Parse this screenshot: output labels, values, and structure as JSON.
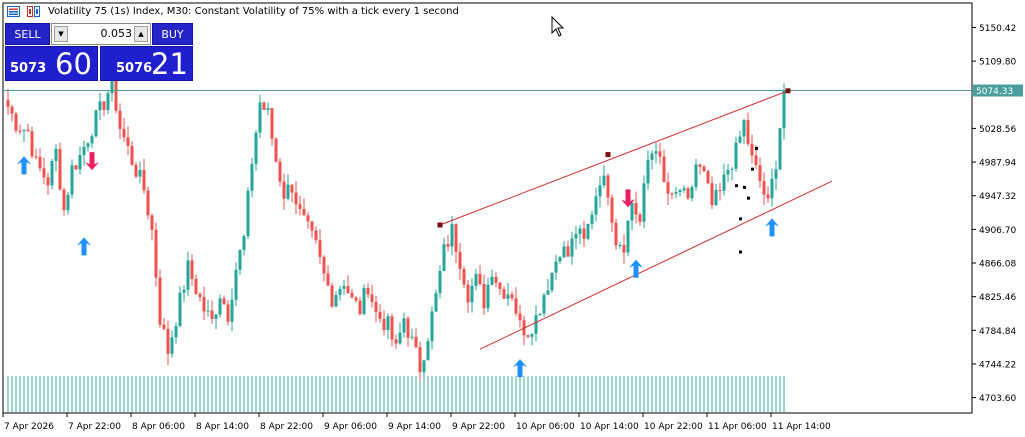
{
  "header": {
    "title": "Volatility 75 (1s) Index, M30:  Constant Volatility of 75% with a tick every 1 second"
  },
  "trade_panel": {
    "sell_label": "SELL",
    "buy_label": "BUY",
    "lot": "0.053",
    "lot_down": "▼",
    "lot_up": "▲",
    "sell_price_small": "5073",
    "sell_price_big": "60",
    "buy_price_small": "5076",
    "buy_price_big": "21"
  },
  "colors": {
    "bull": "#26a69a",
    "bear": "#ef5350",
    "channel": "#d32f2f",
    "buy_arrow": "#1e90ff",
    "sell_arrow": "#e91e63",
    "price_line": "#4a9e9e",
    "volume": "#3aa8a8"
  },
  "chart_data": {
    "type": "candlestick",
    "symbol": "Volatility 75 (1s) Index",
    "timeframe": "M30",
    "y_ticks": [
      "5150.42",
      "5109.80",
      "5028.56",
      "4987.94",
      "4947.32",
      "4906.70",
      "4866.08",
      "4825.46",
      "4784.84",
      "4744.22",
      "4703.60"
    ],
    "ylim": [
      4685,
      5180
    ],
    "x_ticks": [
      "7 Apr 2026",
      "7 Apr 22:00",
      "8 Apr 06:00",
      "8 Apr 14:00",
      "8 Apr 22:00",
      "9 Apr 06:00",
      "9 Apr 14:00",
      "9 Apr 22:00",
      "10 Apr 06:00",
      "10 Apr 14:00",
      "10 Apr 22:00",
      "11 Apr 06:00",
      "11 Apr 14:00"
    ],
    "current_price": "5074.33",
    "close_path": [
      [
        0,
        5055
      ],
      [
        2,
        5035
      ],
      [
        5,
        5025
      ],
      [
        7,
        4985
      ],
      [
        10,
        4965
      ],
      [
        12,
        5000
      ],
      [
        14,
        4930
      ],
      [
        16,
        4980
      ],
      [
        18,
        4995
      ],
      [
        21,
        5030
      ],
      [
        24,
        5060
      ],
      [
        26,
        5085
      ],
      [
        28,
        5030
      ],
      [
        31,
        4990
      ],
      [
        34,
        4955
      ],
      [
        36,
        4905
      ],
      [
        38,
        4800
      ],
      [
        40,
        4760
      ],
      [
        42,
        4800
      ],
      [
        45,
        4860
      ],
      [
        47,
        4835
      ],
      [
        49,
        4810
      ],
      [
        51,
        4795
      ],
      [
        53,
        4830
      ],
      [
        55,
        4805
      ],
      [
        57,
        4860
      ],
      [
        59,
        4895
      ],
      [
        61,
        4990
      ],
      [
        63,
        5060
      ],
      [
        65,
        5045
      ],
      [
        67,
        4990
      ],
      [
        69,
        4950
      ],
      [
        71,
        4960
      ],
      [
        73,
        4925
      ],
      [
        75,
        4905
      ],
      [
        77,
        4885
      ],
      [
        79,
        4850
      ],
      [
        81,
        4825
      ],
      [
        84,
        4845
      ],
      [
        86,
        4820
      ],
      [
        88,
        4810
      ],
      [
        90,
        4840
      ],
      [
        92,
        4805
      ],
      [
        95,
        4790
      ],
      [
        97,
        4760
      ],
      [
        99,
        4800
      ],
      [
        101,
        4770
      ],
      [
        103,
        4740
      ],
      [
        105,
        4780
      ],
      [
        107,
        4825
      ],
      [
        109,
        4880
      ],
      [
        111,
        4905
      ],
      [
        113,
        4870
      ],
      [
        115,
        4830
      ],
      [
        117,
        4845
      ],
      [
        119,
        4820
      ],
      [
        121,
        4860
      ],
      [
        123,
        4835
      ],
      [
        126,
        4830
      ],
      [
        128,
        4790
      ],
      [
        130,
        4785
      ],
      [
        132,
        4800
      ],
      [
        134,
        4830
      ],
      [
        136,
        4855
      ],
      [
        138,
        4885
      ],
      [
        140,
        4875
      ],
      [
        142,
        4905
      ],
      [
        144,
        4890
      ],
      [
        146,
        4930
      ],
      [
        148,
        4970
      ],
      [
        150,
        4955
      ],
      [
        152,
        4895
      ],
      [
        154,
        4890
      ],
      [
        156,
        4940
      ],
      [
        158,
        4915
      ],
      [
        160,
        4990
      ],
      [
        162,
        5010
      ],
      [
        164,
        4960
      ],
      [
        166,
        4940
      ],
      [
        168,
        4955
      ],
      [
        170,
        4935
      ],
      [
        172,
        4985
      ],
      [
        174,
        4970
      ],
      [
        176,
        4935
      ],
      [
        178,
        4950
      ],
      [
        180,
        4980
      ],
      [
        182,
        5000
      ],
      [
        184,
        5035
      ],
      [
        186,
        4990
      ],
      [
        188,
        4965
      ],
      [
        190,
        4935
      ],
      [
        192,
        4990
      ],
      [
        194,
        5074
      ]
    ],
    "channel": {
      "upper": [
        [
          108,
          4912
        ],
        [
          195,
          5074
        ]
      ],
      "lower": [
        [
          118,
          4762
        ],
        [
          206,
          4965
        ]
      ]
    },
    "signals": [
      {
        "type": "buy",
        "i": 4,
        "value": 4995
      },
      {
        "type": "sell",
        "i": 21,
        "value": 5000
      },
      {
        "type": "buy",
        "i": 19,
        "value": 4897
      },
      {
        "type": "buy",
        "i": 128,
        "value": 4750
      },
      {
        "type": "sell",
        "i": 155,
        "value": 4955
      },
      {
        "type": "buy",
        "i": 157,
        "value": 4870
      },
      {
        "type": "buy",
        "i": 191,
        "value": 4920
      }
    ]
  }
}
